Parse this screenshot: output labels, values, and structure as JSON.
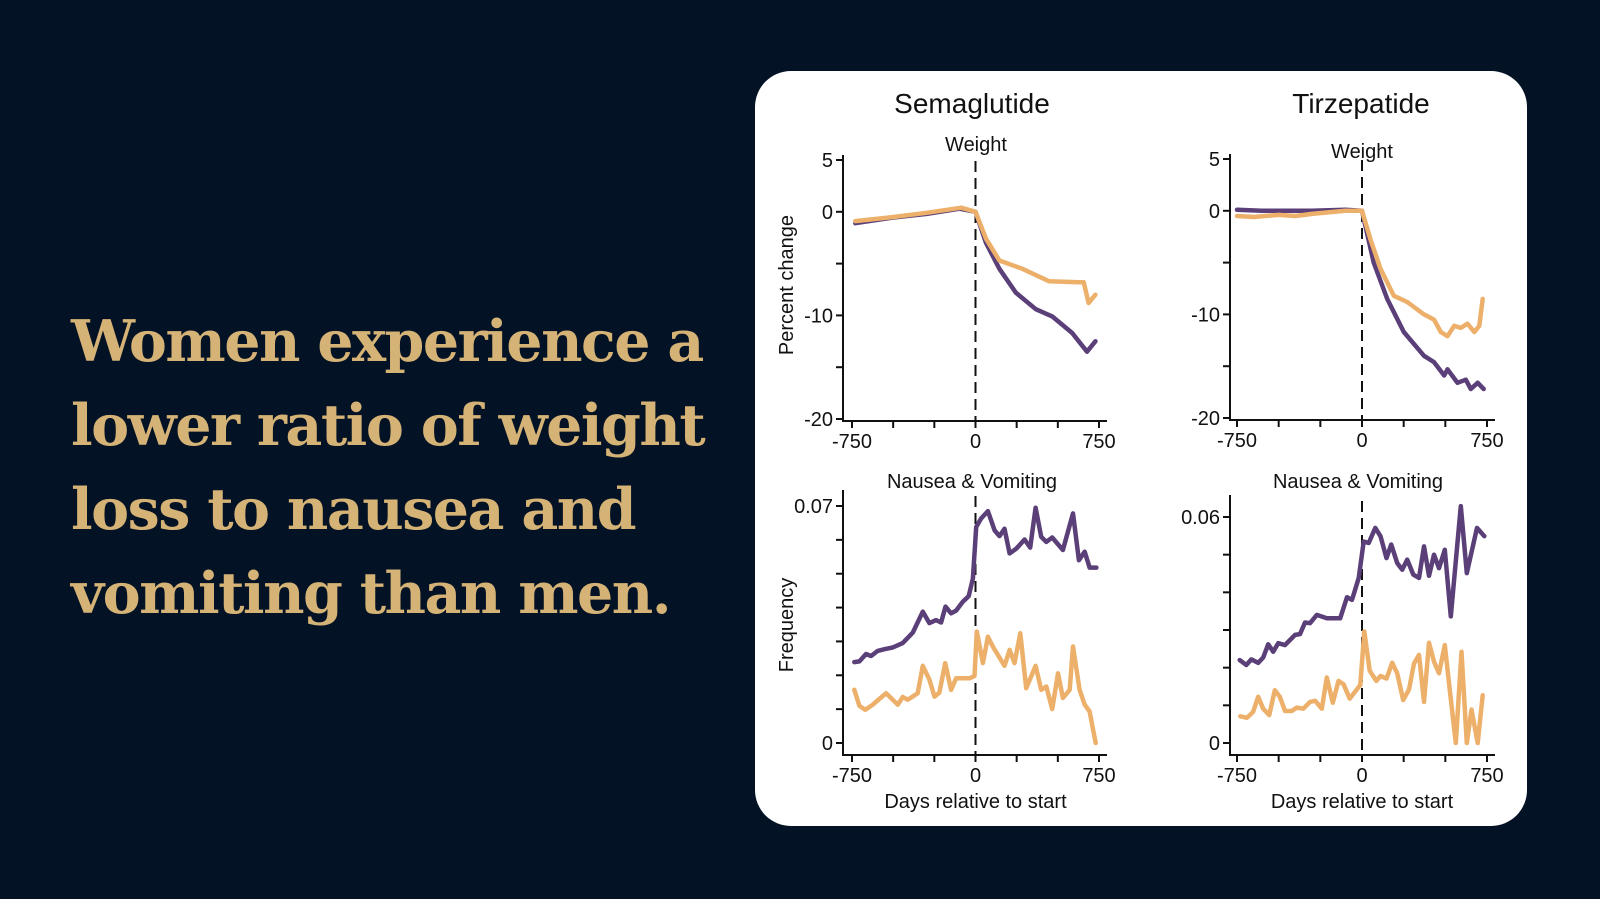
{
  "headline": "Women experience a lower ratio of weight loss to nausea and vomiting than men.",
  "colors": {
    "background": "#031224",
    "headline": "#d5b276",
    "women": "#5b3f78",
    "men": "#edb06a"
  },
  "chart_data": [
    {
      "type": "line",
      "drug": "Semaglutide",
      "title": "Weight",
      "xlabel": "",
      "ylabel": "Percent change",
      "xlim": [
        -750,
        750
      ],
      "ylim": [
        -20,
        5
      ],
      "xticks": [
        -750,
        -500,
        -250,
        0,
        250,
        500,
        750
      ],
      "xtick_labels": [
        "-750",
        "0",
        "750"
      ],
      "yticks": [
        5,
        0,
        -5,
        -10,
        -15,
        -20
      ],
      "ytick_labels": [
        "5",
        "0",
        "-10",
        "-20"
      ],
      "vline": 0,
      "series": [
        {
          "name": "purple",
          "x": [
            -730,
            -499,
            -297,
            -96,
            0,
            64,
            145,
            245,
            366,
            466,
            587,
            677,
            728
          ],
          "y": [
            -1.1,
            -0.55,
            -0.2,
            0.3,
            0,
            -3,
            -5.5,
            -7.8,
            -9.4,
            -10.1,
            -11.7,
            -13.5,
            -12.5
          ]
        },
        {
          "name": "orange",
          "x": [
            -730,
            -499,
            -297,
            -86,
            0,
            64,
            145,
            285,
            446,
            627,
            657,
            687,
            728
          ],
          "y": [
            -0.9,
            -0.5,
            -0.1,
            0.4,
            0,
            -2.6,
            -4.7,
            -5.5,
            -6.7,
            -6.8,
            -6.8,
            -8.8,
            -8
          ]
        }
      ]
    },
    {
      "type": "line",
      "drug": "Semaglutide",
      "title": "Nausea & Vomiting",
      "xlabel": "Days relative to start",
      "ylabel": "Frequency",
      "xlim": [
        -750,
        750
      ],
      "ylim": [
        0,
        0.07
      ],
      "xticks": [
        -750,
        -500,
        -250,
        0,
        250,
        500,
        750
      ],
      "xtick_labels": [
        "-750",
        "0",
        "750"
      ],
      "yticks": [
        0,
        0.01,
        0.02,
        0.03,
        0.04,
        0.05,
        0.06,
        0.07
      ],
      "ytick_labels": [
        "0",
        "0.07"
      ],
      "vline": 0,
      "series": [
        {
          "name": "purple",
          "x": [
            -736,
            -705,
            -665,
            -634,
            -594,
            -553,
            -503,
            -442,
            -381,
            -320,
            -280,
            -239,
            -209,
            -182,
            -148,
            -118,
            -77,
            -41,
            -16,
            4,
            34,
            75,
            116,
            146,
            176,
            207,
            247,
            298,
            332,
            365,
            399,
            430,
            466,
            531,
            592,
            628,
            663,
            693,
            734
          ],
          "y": [
            0.0239,
            0.0241,
            0.0263,
            0.0257,
            0.0272,
            0.0277,
            0.0282,
            0.0295,
            0.0326,
            0.0388,
            0.0354,
            0.0363,
            0.0356,
            0.0403,
            0.0383,
            0.0391,
            0.0417,
            0.0434,
            0.0486,
            0.0638,
            0.0663,
            0.0685,
            0.0628,
            0.0611,
            0.0633,
            0.056,
            0.0574,
            0.0601,
            0.0577,
            0.0695,
            0.0609,
            0.0594,
            0.0607,
            0.057,
            0.0678,
            0.054,
            0.0565,
            0.0518,
            0.0518
          ]
        },
        {
          "name": "orange",
          "x": [
            -736,
            -705,
            -669,
            -624,
            -584,
            -543,
            -472,
            -442,
            -411,
            -351,
            -320,
            -280,
            -249,
            -219,
            -184,
            -148,
            -118,
            -36,
            -6,
            8,
            45,
            75,
            105,
            176,
            207,
            237,
            272,
            308,
            365,
            399,
            430,
            466,
            501,
            531,
            572,
            592,
            632,
            663,
            693,
            730
          ],
          "y": [
            0.0157,
            0.011,
            0.0098,
            0.0113,
            0.013,
            0.0147,
            0.0113,
            0.0136,
            0.0128,
            0.0147,
            0.0228,
            0.0187,
            0.0137,
            0.0149,
            0.0236,
            0.0157,
            0.0191,
            0.0191,
            0.0198,
            0.0329,
            0.0236,
            0.0314,
            0.0285,
            0.0228,
            0.0275,
            0.0236,
            0.0324,
            0.0162,
            0.0228,
            0.0157,
            0.0167,
            0.01,
            0.0206,
            0.0133,
            0.0157,
            0.0285,
            0.0157,
            0.0113,
            0.0093,
            0
          ]
        }
      ]
    },
    {
      "type": "line",
      "drug": "Tirzepatide",
      "title": "Weight",
      "xlabel": "",
      "ylabel": "",
      "xlim": [
        -750,
        750
      ],
      "ylim": [
        -20,
        5
      ],
      "xticks": [
        -750,
        -500,
        -250,
        0,
        250,
        500,
        750
      ],
      "xtick_labels": [
        "-750",
        "0",
        "750"
      ],
      "yticks": [
        5,
        0,
        -5,
        -10,
        -15,
        -20
      ],
      "ytick_labels": [
        "5",
        "0",
        "-10",
        "-20"
      ],
      "vline": 0,
      "series": [
        {
          "name": "purple",
          "x": [
            -750,
            -600,
            -300,
            -100,
            0,
            70,
            151,
            251,
            372,
            432,
            493,
            513,
            573,
            623,
            653,
            694,
            730
          ],
          "y": [
            0.1,
            0,
            0,
            0.1,
            0,
            -5,
            -8.5,
            -11.7,
            -14,
            -14.6,
            -15.9,
            -15.3,
            -16.6,
            -16.3,
            -17.2,
            -16.6,
            -17.2
          ]
        },
        {
          "name": "orange",
          "x": [
            -750,
            -650,
            -500,
            -400,
            -300,
            -100,
            0,
            50,
            111,
            191,
            271,
            372,
            432,
            473,
            513,
            553,
            593,
            633,
            674,
            704,
            724
          ],
          "y": [
            -0.5,
            -0.6,
            -0.4,
            -0.5,
            -0.3,
            0,
            0,
            -2.7,
            -5.6,
            -8.2,
            -8.8,
            -10,
            -10.5,
            -11.7,
            -12.1,
            -11.1,
            -11.3,
            -10.9,
            -11.7,
            -11.1,
            -8.5
          ]
        }
      ]
    },
    {
      "type": "line",
      "drug": "Tirzepatide",
      "title": "Nausea & Vomiting",
      "xlabel": "Days relative to start",
      "ylabel": "",
      "xlim": [
        -750,
        750
      ],
      "ylim": [
        0,
        0.06
      ],
      "xticks": [
        -750,
        -500,
        -250,
        0,
        250,
        500,
        750
      ],
      "xtick_labels": [
        "-750",
        "0",
        "750"
      ],
      "yticks": [
        0,
        0.01,
        0.02,
        0.03,
        0.04,
        0.05,
        0.06
      ],
      "ytick_labels": [
        "0",
        "0.06"
      ],
      "vline": 0,
      "series": [
        {
          "name": "purple",
          "x": [
            -734,
            -694,
            -664,
            -623,
            -593,
            -563,
            -533,
            -503,
            -462,
            -402,
            -372,
            -342,
            -312,
            -271,
            -211,
            -131,
            -90,
            -60,
            -20,
            10,
            40,
            80,
            111,
            147,
            175,
            211,
            241,
            271,
            308,
            342,
            372,
            402,
            432,
            462,
            497,
            533,
            593,
            629,
            690,
            734
          ],
          "y": [
            0.022,
            0.0207,
            0.0222,
            0.0213,
            0.0227,
            0.0262,
            0.0242,
            0.0265,
            0.026,
            0.0287,
            0.0289,
            0.032,
            0.0318,
            0.034,
            0.0331,
            0.0331,
            0.0387,
            0.038,
            0.0438,
            0.0535,
            0.0531,
            0.0571,
            0.0549,
            0.0491,
            0.0527,
            0.0478,
            0.046,
            0.0487,
            0.0447,
            0.0438,
            0.0522,
            0.0444,
            0.05,
            0.0464,
            0.0513,
            0.0336,
            0.0629,
            0.0451,
            0.0571,
            0.0549
          ]
        },
        {
          "name": "orange",
          "x": [
            -730,
            -690,
            -653,
            -623,
            -593,
            -557,
            -523,
            -493,
            -462,
            -422,
            -392,
            -352,
            -312,
            -281,
            -241,
            -211,
            -175,
            -141,
            -111,
            -74,
            -10,
            14,
            46,
            86,
            111,
            147,
            181,
            211,
            247,
            282,
            312,
            342,
            372,
            402,
            432,
            462,
            497,
            529,
            563,
            597,
            629,
            657,
            694,
            724
          ],
          "y": [
            0.0071,
            0.0067,
            0.0083,
            0.0123,
            0.0091,
            0.0074,
            0.014,
            0.0123,
            0.0085,
            0.0085,
            0.0094,
            0.0091,
            0.0109,
            0.0112,
            0.0091,
            0.0174,
            0.0107,
            0.0165,
            0.0156,
            0.0118,
            0.0154,
            0.0296,
            0.0192,
            0.0165,
            0.0178,
            0.0171,
            0.0213,
            0.0185,
            0.0114,
            0.0142,
            0.0211,
            0.0234,
            0.0109,
            0.0266,
            0.0216,
            0.0185,
            0.026,
            0.0131,
            0,
            0.0242,
            0,
            0.0089,
            0,
            0.0127
          ]
        }
      ]
    }
  ]
}
